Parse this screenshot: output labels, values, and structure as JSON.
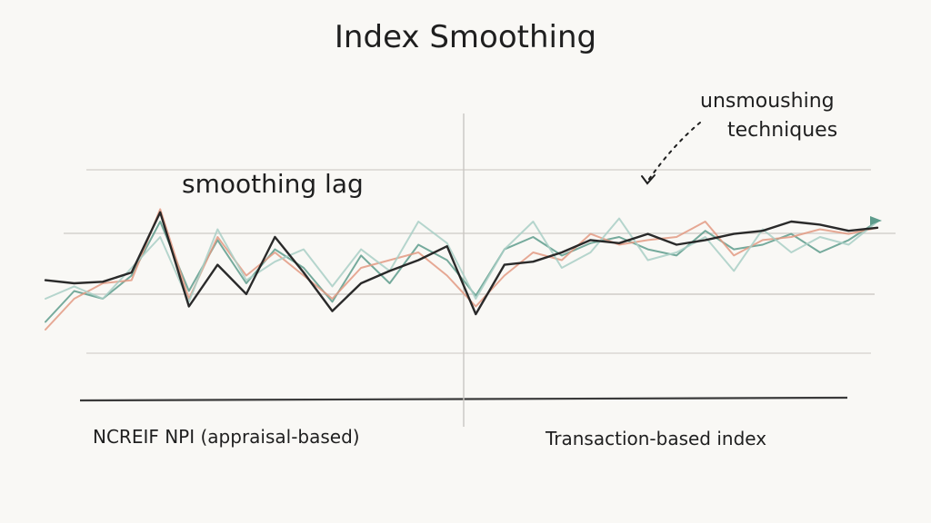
{
  "chart_data": {
    "type": "line",
    "title": "Index Smoothing",
    "annotations": {
      "smoothing_lag": "smoothing lag",
      "unsmoothing_1": "unsmoushing",
      "unsmoothing_2": "techniques",
      "left_region": "NCREIF NPI (appraisal-based)",
      "right_region": "Transaction-based index"
    },
    "grid": true,
    "legend": "none",
    "x": [
      0,
      1,
      2,
      3,
      4,
      5,
      6,
      7,
      8,
      9,
      10,
      11,
      12,
      13,
      14,
      15,
      16,
      17,
      18,
      19,
      20,
      21,
      22,
      23,
      24,
      25,
      26,
      27,
      28,
      29
    ],
    "ylim": [
      0,
      100
    ],
    "series": [
      {
        "color": "#1f1f1f",
        "values": [
          42,
          40,
          41,
          47,
          86,
          25,
          52,
          33,
          70,
          47,
          22,
          40,
          48,
          55,
          64,
          20,
          52,
          54,
          60,
          68,
          66,
          72,
          65,
          68,
          72,
          74,
          80,
          78,
          74,
          76
        ]
      },
      {
        "color": "#5e9c8c",
        "values": [
          15,
          35,
          30,
          45,
          80,
          35,
          68,
          40,
          62,
          50,
          28,
          58,
          40,
          65,
          55,
          32,
          62,
          70,
          58,
          66,
          70,
          62,
          58,
          74,
          62,
          65,
          72,
          60,
          68,
          80
        ]
      },
      {
        "color": "#e39a82",
        "values": [
          10,
          30,
          40,
          42,
          88,
          30,
          70,
          45,
          60,
          45,
          30,
          50,
          55,
          60,
          45,
          25,
          45,
          60,
          55,
          72,
          65,
          68,
          70,
          80,
          58,
          68,
          70,
          75,
          72,
          76
        ]
      },
      {
        "color": "#a9cfc6",
        "values": [
          30,
          38,
          30,
          50,
          70,
          28,
          75,
          42,
          54,
          62,
          38,
          62,
          48,
          80,
          66,
          30,
          62,
          80,
          50,
          60,
          82,
          55,
          60,
          70,
          48,
          75,
          60,
          70,
          65,
          80
        ]
      }
    ]
  }
}
